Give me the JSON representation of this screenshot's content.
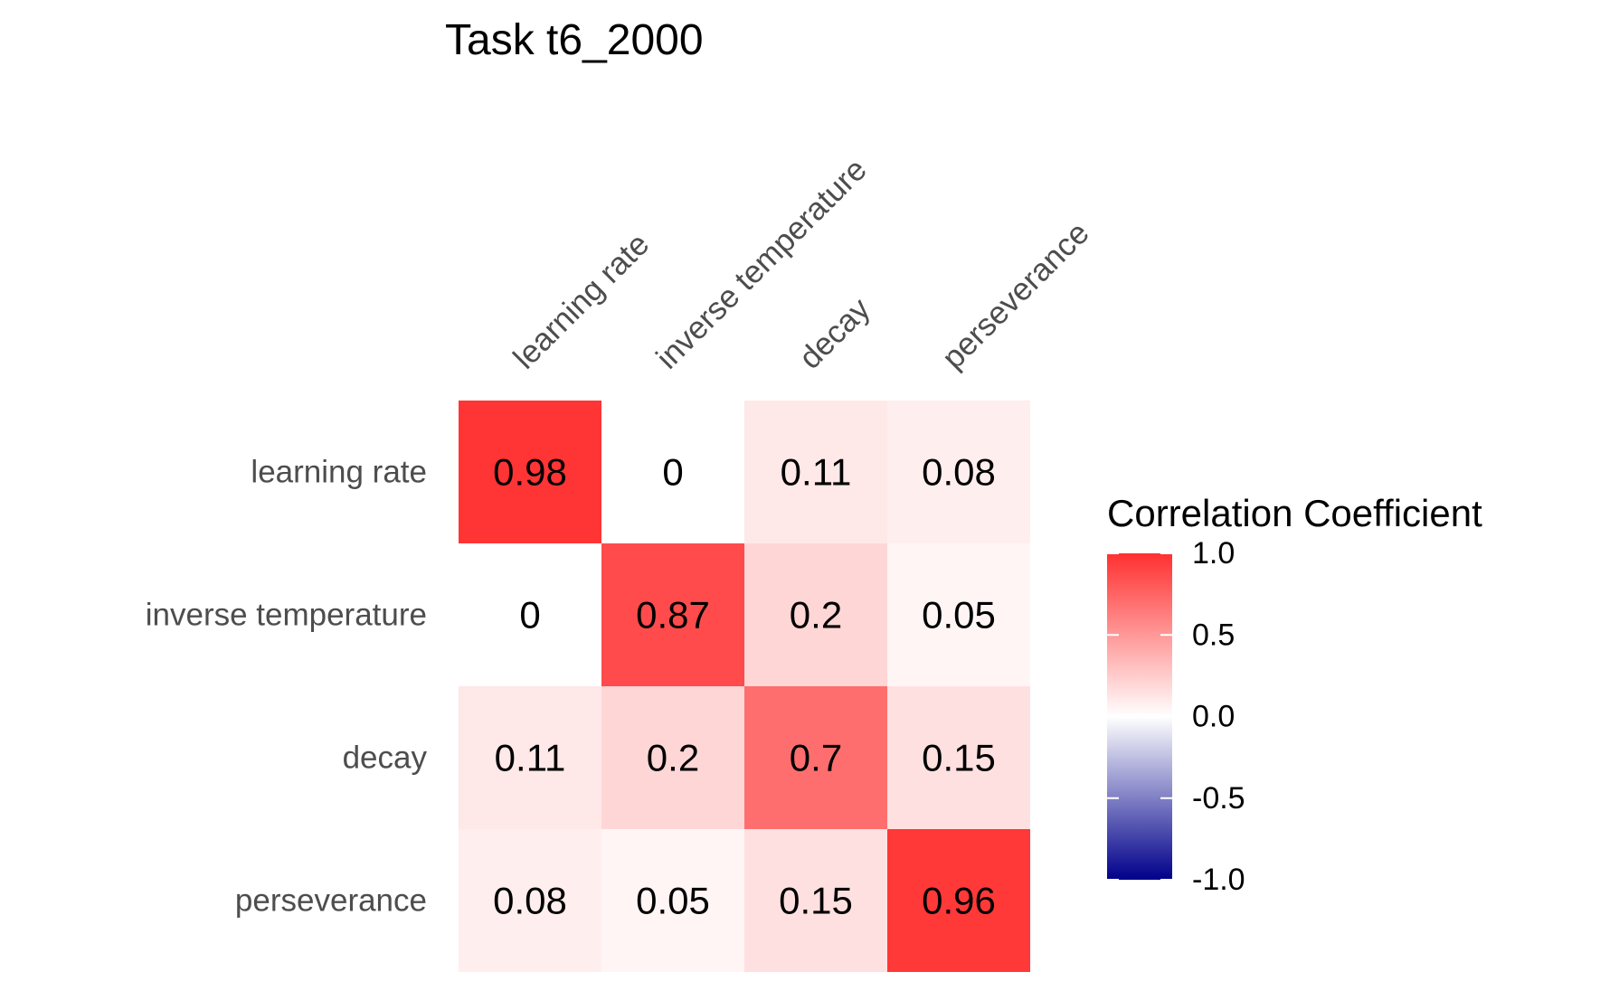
{
  "chart_data": {
    "type": "heatmap",
    "title": "Task t6_2000",
    "rows": [
      "learning rate",
      "inverse temperature",
      "decay",
      "perseverance"
    ],
    "columns": [
      "learning rate",
      "inverse temperature",
      "decay",
      "perseverance"
    ],
    "values": [
      [
        0.98,
        0,
        0.11,
        0.08
      ],
      [
        0,
        0.87,
        0.2,
        0.05
      ],
      [
        0.11,
        0.2,
        0.7,
        0.15
      ],
      [
        0.08,
        0.05,
        0.15,
        0.96
      ]
    ],
    "cell_labels": [
      [
        "0.98",
        "0",
        "0.11",
        "0.08"
      ],
      [
        "0",
        "0.87",
        "0.2",
        "0.05"
      ],
      [
        "0.11",
        "0.2",
        "0.7",
        "0.15"
      ],
      [
        "0.08",
        "0.05",
        "0.15",
        "0.96"
      ]
    ],
    "legend": {
      "title": "Correlation Coefficient",
      "range": [
        -1,
        1
      ],
      "ticks": [
        1,
        0.5,
        0,
        -0.5,
        -1
      ],
      "tick_labels": [
        "1.0",
        "0.5",
        "0.0",
        "-0.5",
        "-1.0"
      ],
      "low_color": "#00008b",
      "mid_color": "#ffffff",
      "high_color": "#ff3030"
    }
  }
}
